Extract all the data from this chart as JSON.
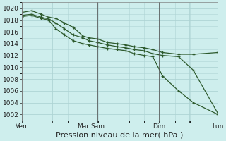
{
  "bg_color": "#ceeeed",
  "grid_color": "#aed4d4",
  "line_color": "#2d5a2d",
  "xlabel": "Pression niveau de la mer( hPa )",
  "xlabel_fontsize": 8,
  "ytick_fontsize": 6.5,
  "xtick_fontsize": 6.5,
  "ylim": [
    1001,
    1021
  ],
  "yticks": [
    1002,
    1004,
    1006,
    1008,
    1010,
    1012,
    1014,
    1016,
    1018,
    1020
  ],
  "xtick_labels": [
    "Ven",
    "",
    "Mar",
    "Sam",
    "",
    "Dim",
    "",
    "Lun"
  ],
  "xtick_positions": [
    0,
    25,
    50,
    62,
    87,
    112,
    137,
    160
  ],
  "vline_positions": [
    0,
    50,
    62,
    112,
    160
  ],
  "n_points": 20,
  "series1_x": [
    0,
    8,
    16,
    22,
    28,
    35,
    42,
    50,
    55,
    62,
    70,
    78,
    85,
    92,
    100,
    107,
    115,
    128,
    140,
    160
  ],
  "series1_y": [
    1019.3,
    1019.6,
    1019.0,
    1018.5,
    1018.3,
    1017.5,
    1016.8,
    1015.3,
    1015.0,
    1014.8,
    1014.2,
    1014.0,
    1013.8,
    1013.5,
    1013.3,
    1013.0,
    1012.5,
    1012.2,
    1012.2,
    1012.5
  ],
  "series2_x": [
    0,
    8,
    16,
    22,
    28,
    35,
    42,
    50,
    55,
    62,
    70,
    78,
    85,
    92,
    100,
    107,
    115,
    128,
    140,
    160
  ],
  "series2_y": [
    1018.8,
    1019.0,
    1018.5,
    1018.2,
    1017.5,
    1016.5,
    1015.5,
    1015.0,
    1014.5,
    1014.2,
    1013.8,
    1013.5,
    1013.3,
    1013.0,
    1012.8,
    1012.3,
    1012.0,
    1011.8,
    1009.5,
    1002.2
  ],
  "series3_x": [
    0,
    8,
    16,
    22,
    28,
    35,
    42,
    50,
    55,
    62,
    70,
    78,
    85,
    92,
    100,
    107,
    115,
    128,
    140,
    160
  ],
  "series3_y": [
    1018.6,
    1018.8,
    1018.3,
    1018.0,
    1016.5,
    1015.5,
    1014.5,
    1014.0,
    1013.8,
    1013.5,
    1013.2,
    1013.0,
    1012.8,
    1012.3,
    1012.0,
    1011.8,
    1008.5,
    1006.0,
    1004.0,
    1002.0
  ]
}
